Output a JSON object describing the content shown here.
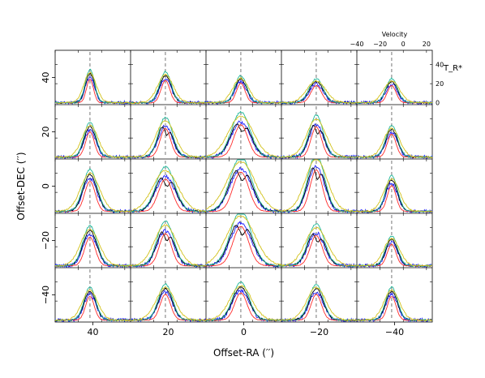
{
  "chart_data": {
    "type": "line",
    "layout": "grid-5x5",
    "xlabel": "Offset-RA (′′)",
    "ylabel": "Offset-DEC (′′)",
    "x_ticks": [
      "40",
      "20",
      "0",
      "−20",
      "−40"
    ],
    "y_ticks": [
      "40",
      "20",
      "0",
      "−20",
      "−40"
    ],
    "inset_axis": {
      "xlabel": "Velocity",
      "x_ticks": [
        "−40",
        "−20",
        "0",
        "20"
      ],
      "xlim": [
        -40,
        25
      ],
      "ylabel": "T_R*",
      "y_ticks": [
        "0",
        "20",
        "40"
      ],
      "ylim": [
        -2,
        55
      ]
    },
    "center_velocity": -10,
    "series": [
      {
        "color": "#1f1fff",
        "role": "noisy"
      },
      {
        "color": "#000000",
        "role": "main"
      },
      {
        "color": "#ff2a2a",
        "role": "thin"
      },
      {
        "color": "#1fb89a",
        "role": "bright"
      },
      {
        "color": "#d2c21a",
        "role": "wide"
      }
    ],
    "panels": [
      [
        {
          "peak": 33,
          "width": 4
        },
        {
          "peak": 31,
          "width": 5
        },
        {
          "peak": 27,
          "width": 5
        },
        {
          "peak": 24,
          "width": 6
        },
        {
          "peak": 24,
          "width": 5
        }
      ],
      [
        {
          "peak": 35,
          "width": 5
        },
        {
          "peak": 40,
          "width": 6
        },
        {
          "peak": 45,
          "width": 8
        },
        {
          "peak": 42,
          "width": 6
        },
        {
          "peak": 32,
          "width": 5
        }
      ],
      [
        {
          "peak": 42,
          "width": 6
        },
        {
          "peak": 45,
          "width": 8
        },
        {
          "peak": 55,
          "width": 9
        },
        {
          "peak": 58,
          "width": 7
        },
        {
          "peak": 36,
          "width": 5
        }
      ],
      [
        {
          "peak": 40,
          "width": 6
        },
        {
          "peak": 45,
          "width": 7
        },
        {
          "peak": 55,
          "width": 9
        },
        {
          "peak": 42,
          "width": 7
        },
        {
          "peak": 30,
          "width": 5
        }
      ],
      [
        {
          "peak": 33,
          "width": 5
        },
        {
          "peak": 36,
          "width": 6
        },
        {
          "peak": 38,
          "width": 7
        },
        {
          "peak": 36,
          "width": 6
        },
        {
          "peak": 33,
          "width": 5
        }
      ]
    ]
  }
}
